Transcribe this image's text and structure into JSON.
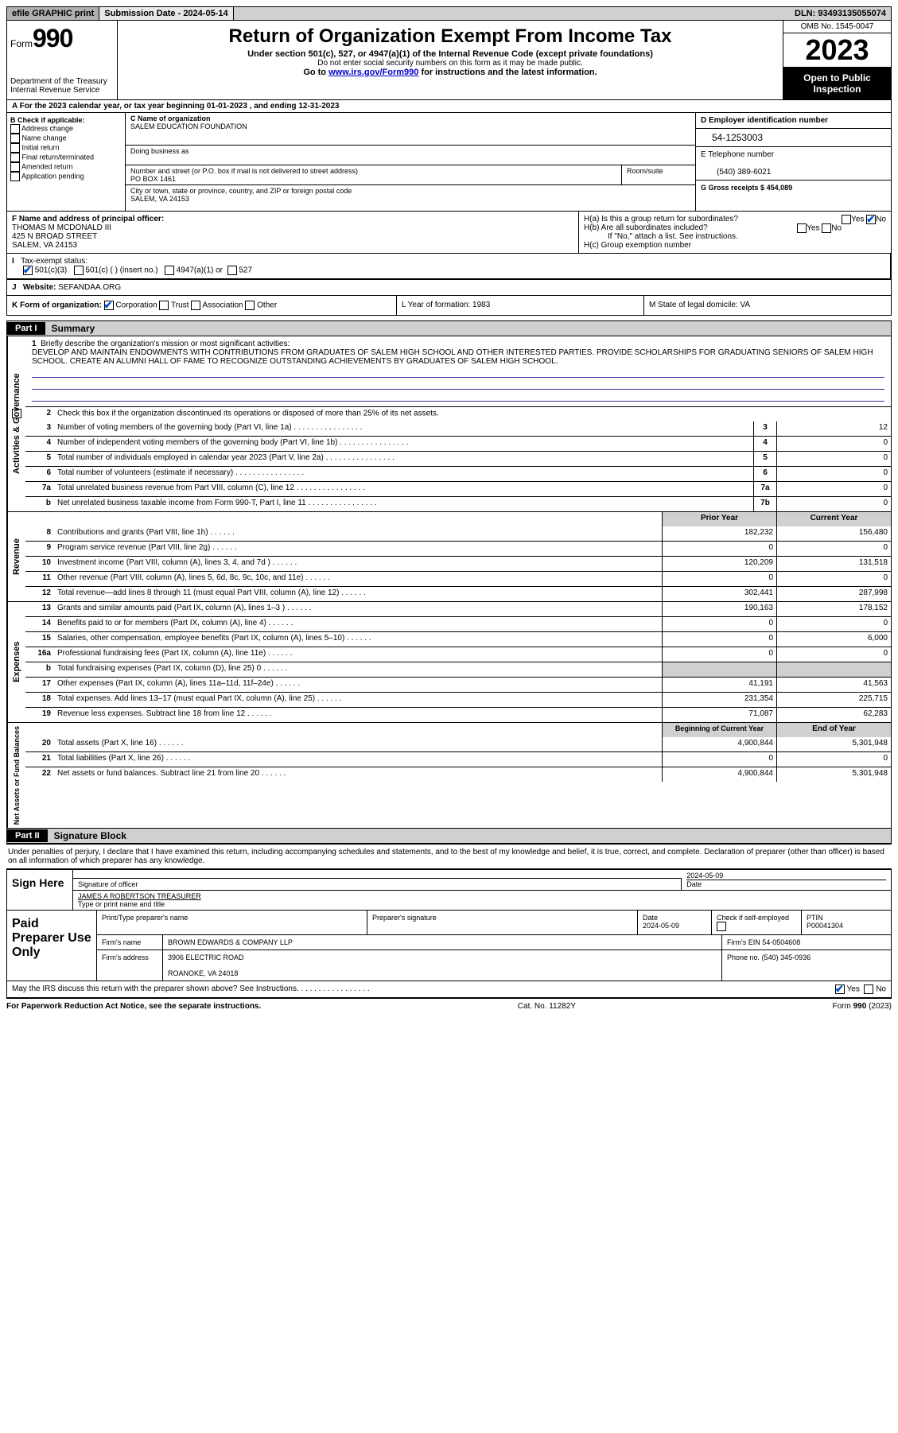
{
  "top": {
    "efile": "efile GRAPHIC print",
    "submission": "Submission Date - 2024-05-14",
    "dln": "DLN: 93493135055074"
  },
  "header": {
    "formWord": "Form",
    "formNum": "990",
    "dept": "Department of the Treasury\nInternal Revenue Service",
    "title": "Return of Organization Exempt From Income Tax",
    "sub": "Under section 501(c), 527, or 4947(a)(1) of the Internal Revenue Code (except private foundations)",
    "ssn": "Do not enter social security numbers on this form as it may be made public.",
    "goto": "Go to www.irs.gov/Form990 for instructions and the latest information.",
    "omb": "OMB No. 1545-0047",
    "year": "2023",
    "inspection": "Open to Public Inspection"
  },
  "rowA": "A For the 2023 calendar year, or tax year beginning 01-01-2023   , and ending 12-31-2023",
  "boxB": {
    "label": "B Check if applicable:",
    "opts": [
      "Address change",
      "Name change",
      "Initial return",
      "Final return/terminated",
      "Amended return",
      "Application pending"
    ]
  },
  "boxC": {
    "nameLbl": "C Name of organization",
    "name": "SALEM EDUCATION FOUNDATION",
    "dbaLbl": "Doing business as",
    "streetLbl": "Number and street (or P.O. box if mail is not delivered to street address)",
    "street": "PO BOX 1461",
    "roomLbl": "Room/suite",
    "cityLbl": "City or town, state or province, country, and ZIP or foreign postal code",
    "city": "SALEM, VA  24153"
  },
  "boxD": {
    "einLbl": "D Employer identification number",
    "ein": "54-1253003",
    "telLbl": "E Telephone number",
    "tel": "(540) 389-6021",
    "grossLbl": "G Gross receipts $",
    "gross": "454,089"
  },
  "boxF": {
    "lbl": "F Name and address of principal officer:",
    "name": "THOMAS M MCDONALD III",
    "addr": "425 N BROAD STREET",
    "city": "SALEM, VA  24153"
  },
  "boxH": {
    "a": "H(a)  Is this a group return for subordinates?",
    "b": "H(b)  Are all subordinates included?",
    "note": "If \"No,\" attach a list. See instructions.",
    "c": "H(c)  Group exemption number  "
  },
  "boxI": {
    "lbl": "Tax-exempt status:",
    "o1": "501(c)(3)",
    "o2": "501(c) (  ) (insert no.)",
    "o3": "4947(a)(1) or",
    "o4": "527"
  },
  "boxJ": {
    "lbl": "Website: ",
    "val": "SEFANDAA.ORG"
  },
  "boxK": "K Form of organization:",
  "kOpts": [
    "Corporation",
    "Trust",
    "Association",
    "Other"
  ],
  "boxL": "L Year of formation: 1983",
  "boxM": "M State of legal domicile: VA",
  "part1": {
    "hdr": "Part I",
    "title": "Summary"
  },
  "mission": {
    "num": "1",
    "lbl": "Briefly describe the organization's mission or most significant activities:",
    "text": "DEVELOP AND MAINTAIN ENDOWMENTS WITH CONTRIBUTIONS FROM GRADUATES OF SALEM HIGH SCHOOL AND OTHER INTERESTED PARTIES. PROVIDE SCHOLARSHIPS FOR GRADUATING SENIORS OF SALEM HIGH SCHOOL. CREATE AN ALUMNI HALL OF FAME TO RECOGNIZE OUTSTANDING ACHIEVEMENTS BY GRADUATES OF SALEM HIGH SCHOOL."
  },
  "line2": "Check this box      if the organization discontinued its operations or disposed of more than 25% of its net assets.",
  "gov": {
    "side": "Activities & Governance",
    "rows": [
      {
        "n": "3",
        "d": "Number of voting members of the governing body (Part VI, line 1a)",
        "b": "3",
        "v": "12"
      },
      {
        "n": "4",
        "d": "Number of independent voting members of the governing body (Part VI, line 1b)",
        "b": "4",
        "v": "0"
      },
      {
        "n": "5",
        "d": "Total number of individuals employed in calendar year 2023 (Part V, line 2a)",
        "b": "5",
        "v": "0"
      },
      {
        "n": "6",
        "d": "Total number of volunteers (estimate if necessary)",
        "b": "6",
        "v": "0"
      },
      {
        "n": "7a",
        "d": "Total unrelated business revenue from Part VIII, column (C), line 12",
        "b": "7a",
        "v": "0"
      },
      {
        "n": "b",
        "d": "Net unrelated business taxable income from Form 990-T, Part I, line 11",
        "b": "7b",
        "v": "0"
      }
    ]
  },
  "twoColHdr": {
    "p": "Prior Year",
    "c": "Current Year"
  },
  "rev": {
    "side": "Revenue",
    "rows": [
      {
        "n": "8",
        "d": "Contributions and grants (Part VIII, line 1h)",
        "p": "182,232",
        "c": "156,480"
      },
      {
        "n": "9",
        "d": "Program service revenue (Part VIII, line 2g)",
        "p": "0",
        "c": "0"
      },
      {
        "n": "10",
        "d": "Investment income (Part VIII, column (A), lines 3, 4, and 7d )",
        "p": "120,209",
        "c": "131,518"
      },
      {
        "n": "11",
        "d": "Other revenue (Part VIII, column (A), lines 5, 6d, 8c, 9c, 10c, and 11e)",
        "p": "0",
        "c": "0"
      },
      {
        "n": "12",
        "d": "Total revenue—add lines 8 through 11 (must equal Part VIII, column (A), line 12)",
        "p": "302,441",
        "c": "287,998"
      }
    ]
  },
  "exp": {
    "side": "Expenses",
    "rows": [
      {
        "n": "13",
        "d": "Grants and similar amounts paid (Part IX, column (A), lines 1–3 )",
        "p": "190,163",
        "c": "178,152"
      },
      {
        "n": "14",
        "d": "Benefits paid to or for members (Part IX, column (A), line 4)",
        "p": "0",
        "c": "0"
      },
      {
        "n": "15",
        "d": "Salaries, other compensation, employee benefits (Part IX, column (A), lines 5–10)",
        "p": "0",
        "c": "6,000"
      },
      {
        "n": "16a",
        "d": "Professional fundraising fees (Part IX, column (A), line 11e)",
        "p": "0",
        "c": "0"
      },
      {
        "n": "b",
        "d": "Total fundraising expenses (Part IX, column (D), line 25) 0",
        "p": "grey",
        "c": "grey"
      },
      {
        "n": "17",
        "d": "Other expenses (Part IX, column (A), lines 11a–11d, 11f–24e)",
        "p": "41,191",
        "c": "41,563"
      },
      {
        "n": "18",
        "d": "Total expenses. Add lines 13–17 (must equal Part IX, column (A), line 25)",
        "p": "231,354",
        "c": "225,715"
      },
      {
        "n": "19",
        "d": "Revenue less expenses. Subtract line 18 from line 12",
        "p": "71,087",
        "c": "62,283"
      }
    ]
  },
  "netHdr": {
    "p": "Beginning of Current Year",
    "c": "End of Year"
  },
  "net": {
    "side": "Net Assets or Fund Balances",
    "rows": [
      {
        "n": "20",
        "d": "Total assets (Part X, line 16)",
        "p": "4,900,844",
        "c": "5,301,948"
      },
      {
        "n": "21",
        "d": "Total liabilities (Part X, line 26)",
        "p": "0",
        "c": "0"
      },
      {
        "n": "22",
        "d": "Net assets or fund balances. Subtract line 21 from line 20",
        "p": "4,900,844",
        "c": "5,301,948"
      }
    ]
  },
  "part2": {
    "hdr": "Part II",
    "title": "Signature Block"
  },
  "perjury": "Under penalties of perjury, I declare that I have examined this return, including accompanying schedules and statements, and to the best of my knowledge and belief, it is true, correct, and complete. Declaration of preparer (other than officer) is based on all information of which preparer has any knowledge.",
  "sign": {
    "left": "Sign Here",
    "sigLbl": "Signature of officer",
    "date": "2024-05-09",
    "dateLbl": "Date",
    "name": "JAMES A ROBERTSON  TREASURER",
    "nameLbl": "Type or print name and title"
  },
  "prep": {
    "left": "Paid Preparer Use Only",
    "r1": {
      "c1": "Print/Type preparer's name",
      "c2": "Preparer's signature",
      "c3": "Date",
      "c3v": "2024-05-09",
      "c4": "Check      if self-employed",
      "c5": "PTIN",
      "c5v": "P00041304"
    },
    "r2": {
      "lbl": "Firm's name",
      "v": "BROWN EDWARDS & COMPANY LLP",
      "einLbl": "Firm's EIN",
      "ein": "54-0504608"
    },
    "r3": {
      "lbl": "Firm's address",
      "v": "3906 ELECTRIC ROAD",
      "v2": "ROANOKE, VA  24018",
      "phLbl": "Phone no.",
      "ph": "(540) 345-0936"
    }
  },
  "discuss": "May the IRS discuss this return with the preparer shown above? See Instructions.",
  "footer": {
    "l": "For Paperwork Reduction Act Notice, see the separate instructions.",
    "c": "Cat. No. 11282Y",
    "r": "Form 990 (2023)"
  },
  "yes": "Yes",
  "no": "No"
}
